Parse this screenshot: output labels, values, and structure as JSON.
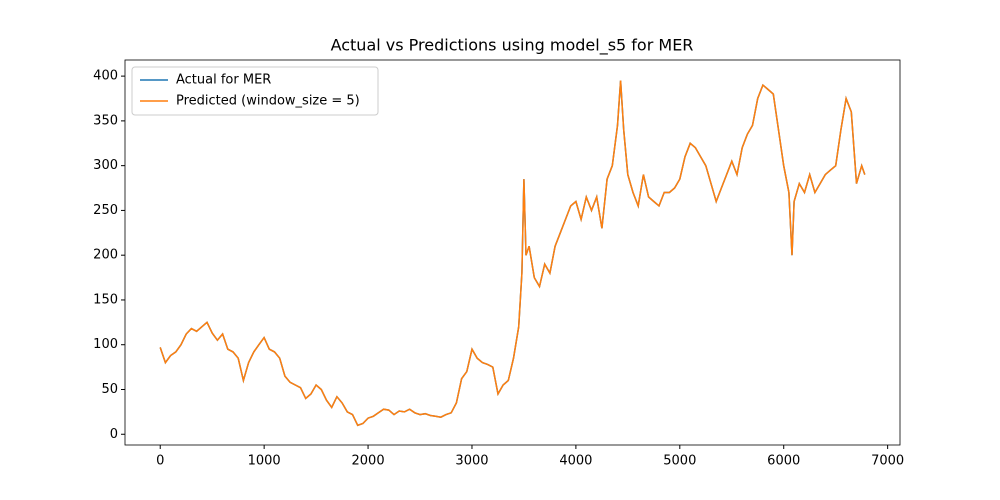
{
  "chart_data": {
    "type": "line",
    "title": "Actual vs Predictions using model_s5 for MER",
    "x": [
      0,
      50,
      100,
      150,
      200,
      250,
      300,
      350,
      400,
      450,
      500,
      550,
      600,
      650,
      700,
      750,
      800,
      850,
      900,
      950,
      1000,
      1050,
      1100,
      1150,
      1200,
      1250,
      1300,
      1350,
      1400,
      1450,
      1500,
      1550,
      1600,
      1650,
      1700,
      1750,
      1800,
      1850,
      1900,
      1950,
      2000,
      2050,
      2100,
      2150,
      2200,
      2250,
      2300,
      2350,
      2400,
      2450,
      2500,
      2550,
      2600,
      2650,
      2700,
      2750,
      2800,
      2850,
      2900,
      2950,
      3000,
      3050,
      3100,
      3150,
      3200,
      3250,
      3300,
      3350,
      3400,
      3450,
      3480,
      3500,
      3520,
      3550,
      3600,
      3650,
      3700,
      3750,
      3800,
      3850,
      3900,
      3950,
      4000,
      4050,
      4100,
      4150,
      4200,
      4250,
      4300,
      4350,
      4400,
      4430,
      4460,
      4500,
      4550,
      4600,
      4650,
      4700,
      4750,
      4800,
      4850,
      4900,
      4950,
      5000,
      5050,
      5100,
      5150,
      5200,
      5250,
      5300,
      5350,
      5400,
      5450,
      5500,
      5550,
      5600,
      5650,
      5700,
      5750,
      5800,
      5850,
      5900,
      5950,
      6000,
      6050,
      6080,
      6100,
      6150,
      6200,
      6250,
      6300,
      6350,
      6400,
      6450,
      6500,
      6550,
      6600,
      6650,
      6700,
      6750,
      6780
    ],
    "series": [
      {
        "name": "Actual for MER",
        "color": "#1f77b4",
        "values": [
          97,
          80,
          88,
          92,
          100,
          112,
          118,
          115,
          120,
          125,
          113,
          105,
          112,
          95,
          92,
          85,
          60,
          80,
          92,
          100,
          108,
          95,
          92,
          85,
          65,
          58,
          55,
          52,
          40,
          45,
          55,
          50,
          38,
          30,
          42,
          35,
          25,
          22,
          10,
          12,
          18,
          20,
          24,
          28,
          27,
          22,
          26,
          25,
          28,
          24,
          22,
          23,
          21,
          20,
          19,
          22,
          24,
          35,
          62,
          70,
          95,
          85,
          80,
          78,
          75,
          45,
          55,
          60,
          85,
          120,
          180,
          285,
          200,
          210,
          175,
          165,
          190,
          180,
          210,
          225,
          240,
          255,
          260,
          240,
          265,
          250,
          265,
          230,
          285,
          300,
          345,
          395,
          340,
          290,
          270,
          255,
          290,
          265,
          260,
          255,
          270,
          270,
          275,
          285,
          310,
          325,
          320,
          310,
          300,
          280,
          260,
          275,
          290,
          305,
          290,
          320,
          335,
          345,
          375,
          390,
          385,
          380,
          340,
          300,
          270,
          200,
          260,
          280,
          270,
          290,
          270,
          280,
          290,
          295,
          300,
          340,
          375,
          360,
          280,
          300,
          290
        ]
      },
      {
        "name": "Predicted (window_size = 5)",
        "color": "#ff7f0e",
        "values": [
          97,
          80,
          88,
          92,
          100,
          112,
          118,
          115,
          120,
          125,
          113,
          105,
          112,
          95,
          92,
          85,
          60,
          80,
          92,
          100,
          108,
          95,
          92,
          85,
          65,
          58,
          55,
          52,
          40,
          45,
          55,
          50,
          38,
          30,
          42,
          35,
          25,
          22,
          10,
          12,
          18,
          20,
          24,
          28,
          27,
          22,
          26,
          25,
          28,
          24,
          22,
          23,
          21,
          20,
          19,
          22,
          24,
          35,
          62,
          70,
          95,
          85,
          80,
          78,
          75,
          45,
          55,
          60,
          85,
          120,
          180,
          285,
          200,
          210,
          175,
          165,
          190,
          180,
          210,
          225,
          240,
          255,
          260,
          240,
          265,
          250,
          265,
          230,
          285,
          300,
          345,
          395,
          340,
          290,
          270,
          255,
          290,
          265,
          260,
          255,
          270,
          270,
          275,
          285,
          310,
          325,
          320,
          310,
          300,
          280,
          260,
          275,
          290,
          305,
          290,
          320,
          335,
          345,
          375,
          390,
          385,
          380,
          340,
          300,
          270,
          200,
          260,
          280,
          270,
          290,
          270,
          280,
          290,
          295,
          300,
          340,
          375,
          360,
          280,
          300,
          290
        ]
      }
    ],
    "xlim": [
      -339,
      7119
    ],
    "xticks": [
      0,
      1000,
      2000,
      3000,
      4000,
      5000,
      6000,
      7000
    ],
    "ylim": [
      -12,
      418
    ],
    "yticks": [
      0,
      50,
      100,
      150,
      200,
      250,
      300,
      350,
      400
    ],
    "legend": "upper left"
  }
}
